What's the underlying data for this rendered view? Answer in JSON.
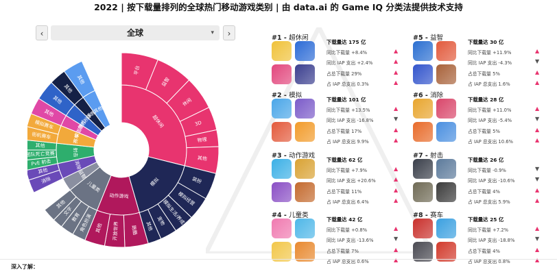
{
  "header": {
    "title": "2022 | 按下载量排列的全球热门移动游戏类别 | 由 data.ai 的 Game IQ 分类法提供技术支持"
  },
  "selector": {
    "prev_icon": "chevron-left",
    "next_icon": "chevron-right",
    "value": "全球"
  },
  "colors": {
    "pink": "#e8346f",
    "magenta": "#b0185c",
    "navy": "#1f2756",
    "gray": "#6b7384",
    "purple": "#6a4ab8",
    "blue": "#2f63c8",
    "green": "#2eae6d",
    "orange": "#f2a93b",
    "teal": "#20a8b5",
    "dark": "#142046"
  },
  "sunburst": {
    "inner": [
      {
        "label": "超休闲",
        "color": "#e8346f"
      },
      {
        "label": "模拟",
        "color": "#1f2756"
      },
      {
        "label": "动作游戏",
        "color": "#b0185c"
      },
      {
        "label": "儿童类",
        "color": "#6b7384"
      },
      {
        "label": "益智",
        "color": "#8a8fa0"
      },
      {
        "label": "消除",
        "color": "#6a4ab8"
      },
      {
        "label": "射击",
        "color": "#2eae6d"
      },
      {
        "label": "赛车",
        "color": "#f2a93b"
      },
      {
        "label": "桌面游戏",
        "color": "#e048a6"
      },
      {
        "label": "角色扮演",
        "color": "#2f63c8"
      },
      {
        "label": "体育",
        "color": "#142046"
      },
      {
        "label": "其他",
        "color": "#5b9cf0"
      }
    ],
    "outer": [
      {
        "label": "平台",
        "color": "#e8346f"
      },
      {
        "label": "益智",
        "color": "#e8346f"
      },
      {
        "label": "休闲",
        "color": "#e8346f"
      },
      {
        "label": "3D",
        "color": "#e8346f"
      },
      {
        "label": "物理",
        "color": "#e8346f"
      },
      {
        "label": "其他",
        "color": "#e8346f"
      },
      {
        "label": "装扮",
        "color": "#1f2756"
      },
      {
        "label": "模拟经营",
        "color": "#1f2756"
      },
      {
        "label": "模拟生活/养成",
        "color": "#1f2756"
      },
      {
        "label": "宠物",
        "color": "#1f2756"
      },
      {
        "label": "其他",
        "color": "#1f2756"
      },
      {
        "label": "跑酷",
        "color": "#b0185c"
      },
      {
        "label": "开放世界",
        "color": "#b0185c"
      },
      {
        "label": "其他",
        "color": "#b0185c"
      },
      {
        "label": "角色扮演",
        "color": "#6b7384"
      },
      {
        "label": "教育",
        "color": "#6b7384"
      },
      {
        "label": "文字",
        "color": "#6b7384"
      },
      {
        "label": "其他",
        "color": "#6b7384"
      },
      {
        "label": "消除",
        "color": "#6a4ab8"
      },
      {
        "label": "其他",
        "color": "#6a4ab8"
      },
      {
        "label": "PvE 射击",
        "color": "#2eae6d"
      },
      {
        "label": "团队死亡竞赛",
        "color": "#2eae6d"
      },
      {
        "label": "其他",
        "color": "#2eae6d"
      },
      {
        "label": "街机赛车",
        "color": "#f2a93b"
      },
      {
        "label": "模拟赛车",
        "color": "#f2a93b"
      },
      {
        "label": "其他",
        "color": "#e048a6"
      },
      {
        "label": "其他",
        "color": "#2f63c8"
      },
      {
        "label": "其他",
        "color": "#142046"
      },
      {
        "label": "其他",
        "color": "#5b9cf0"
      }
    ]
  },
  "categories": [
    {
      "rank": "#1",
      "name": "超休闲",
      "downloads": "下载量达 175 亿",
      "stats": [
        {
          "text": "同比下载量 +8.4%",
          "dir": "up"
        },
        {
          "text": "同比 IAP 支出 +2.4%",
          "dir": "up"
        },
        {
          "text": "占总下载量 29%",
          "dir": "up"
        },
        {
          "text": "占 IAP 总支出 0.3%",
          "dir": "up"
        }
      ],
      "thumbs": [
        "#f0c23a",
        "#2c6bd6",
        "#e2477d",
        "#3b3f8f"
      ]
    },
    {
      "rank": "#2",
      "name": "模拟",
      "downloads": "下载量达 101 亿",
      "stats": [
        {
          "text": "同比下载量 +13.5%",
          "dir": "up"
        },
        {
          "text": "同比 IAP 支出 -16.8%",
          "dir": "down"
        },
        {
          "text": "占总下载量 17%",
          "dir": "up"
        },
        {
          "text": "占 IAP 总支出 9.9%",
          "dir": "up"
        }
      ],
      "thumbs": [
        "#4aa6e8",
        "#7b5bc9",
        "#e35a3c",
        "#f29b2a"
      ]
    },
    {
      "rank": "#3",
      "name": "动作游戏",
      "downloads": "下载量达 62 亿",
      "stats": [
        {
          "text": "同比下载量 +7.9%",
          "dir": "up"
        },
        {
          "text": "同比 IAP 支出 +20.6%",
          "dir": "up"
        },
        {
          "text": "占总下载量 11%",
          "dir": "up"
        },
        {
          "text": "占 IAP 总支出 6.4%",
          "dir": "up"
        }
      ],
      "thumbs": [
        "#3cb0e6",
        "#d9a233",
        "#8a4fc5",
        "#c46a2e"
      ]
    },
    {
      "rank": "#4",
      "name": "儿童类",
      "downloads": "下载量达 42 亿",
      "stats": [
        {
          "text": "同比下载量 +0.8%",
          "dir": "up"
        },
        {
          "text": "同比 IAP 支出 -13.6%",
          "dir": "down"
        },
        {
          "text": "占总下载量 7%",
          "dir": "up"
        },
        {
          "text": "占 IAP 总支出 0.6%",
          "dir": "up"
        }
      ],
      "thumbs": [
        "#f07ab0",
        "#4fb7e8",
        "#f2c74a",
        "#e8892f"
      ]
    },
    {
      "rank": "#5",
      "name": "益智",
      "downloads": "下载量达 30 亿",
      "stats": [
        {
          "text": "同比下载量 +11.9%",
          "dir": "up"
        },
        {
          "text": "同比 IAP 支出 -4.3%",
          "dir": "down"
        },
        {
          "text": "占总下载量 5%",
          "dir": "up"
        },
        {
          "text": "占 IAP 总支出 1.6%",
          "dir": "up"
        }
      ],
      "thumbs": [
        "#2b6fd1",
        "#e25a3c",
        "#3355cc",
        "#a8623a"
      ]
    },
    {
      "rank": "#6",
      "name": "消除",
      "downloads": "下载量达 28 亿",
      "stats": [
        {
          "text": "同比下载量 +11.0%",
          "dir": "up"
        },
        {
          "text": "同比 IAP 支出 -5.4%",
          "dir": "down"
        },
        {
          "text": "占总下载量 5%",
          "dir": "up"
        },
        {
          "text": "占 IAP 总支出 10.6%",
          "dir": "up"
        }
      ],
      "thumbs": [
        "#e8a52e",
        "#d9466a",
        "#e86b2a",
        "#4a8fe0"
      ]
    },
    {
      "rank": "#7",
      "name": "射击",
      "downloads": "下载量达 26 亿",
      "stats": [
        {
          "text": "同比下载量 -0.9%",
          "dir": "down"
        },
        {
          "text": "同比 IAP 支出 -10.6%",
          "dir": "down"
        },
        {
          "text": "占总下载量 4%",
          "dir": "up"
        },
        {
          "text": "占 IAP 总支出 5.9%",
          "dir": "up"
        }
      ],
      "thumbs": [
        "#3a3f4a",
        "#5c7a9b",
        "#6f6a55",
        "#3b3b3b"
      ]
    },
    {
      "rank": "#8",
      "name": "赛车",
      "downloads": "下载量达 25 亿",
      "stats": [
        {
          "text": "同比下载量 +7.2%",
          "dir": "up"
        },
        {
          "text": "同比 IAP 支出 -18.8%",
          "dir": "down"
        },
        {
          "text": "占总下载量 4%",
          "dir": "up"
        },
        {
          "text": "占 IAP 总支出 0.8%",
          "dir": "up"
        }
      ],
      "thumbs": [
        "#c9302c",
        "#3ba0e0",
        "#4a4a52",
        "#d23a2c"
      ]
    }
  ],
  "footer": {
    "label": "深入了解："
  }
}
